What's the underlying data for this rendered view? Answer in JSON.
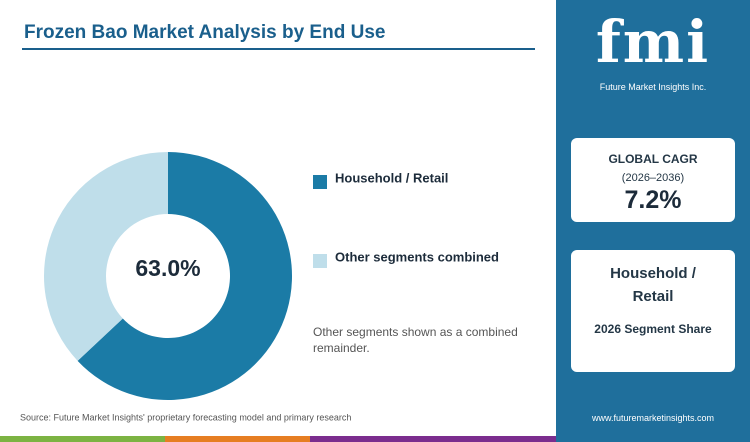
{
  "chart_data": {
    "type": "donut",
    "title": "Frozen Bao Market Analysis by End Use",
    "categories": [
      "Household / Retail",
      "Other segments combined"
    ],
    "values": [
      63.0,
      37.0
    ],
    "value_labels": [
      "63.0%",
      null
    ],
    "colors": [
      "#1b7ba6",
      "#bfdeea"
    ],
    "note": "Other segments shown as a combined remainder.",
    "source": "Source: Future Market Insights' proprietary forecasting model and primary research"
  },
  "sidebar": {
    "logo": "fmi",
    "logo_tagline": "Future Market Insights Inc.",
    "cards": [
      {
        "title": "GLOBAL CAGR",
        "subtitle": "(2026–2036)",
        "value": "7.2%"
      },
      {
        "title": "Household / Retail",
        "subtitle": "2026 Segment Share"
      }
    ],
    "url": "www.futuremarketinsights.com"
  }
}
